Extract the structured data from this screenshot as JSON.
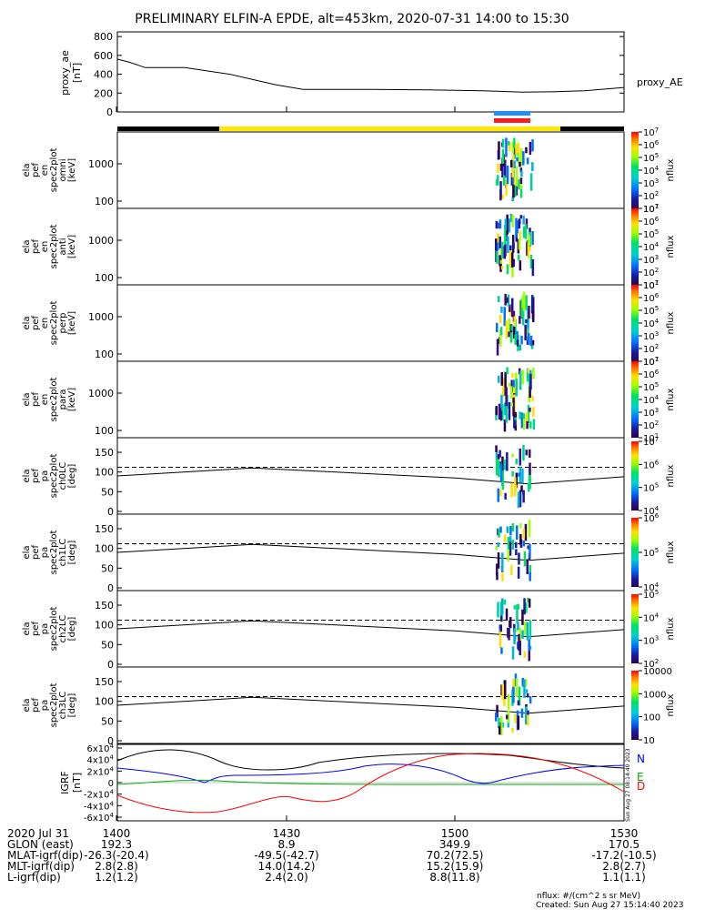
{
  "title": "PRELIMINARY ELFIN-A EPDE, alt=453km, 2020-07-31 14:00 to 15:30",
  "colors": {
    "blue_bar": "#1e90ff",
    "red_bar": "#ff1e1e",
    "yellow_bar": "#ffe600",
    "black_bar": "#000000",
    "grf_N": "#0000ff",
    "grf_E": "#00aa00",
    "grf_D": "#ff0000"
  },
  "ae_panel": {
    "ylabel_lines": [
      "proxy_ae",
      "[nT]"
    ],
    "yticks": [
      0,
      200,
      400,
      600,
      800
    ],
    "ylim": [
      0,
      850
    ],
    "legend": "proxy_AE",
    "series": {
      "t": [
        0,
        2,
        5,
        12,
        20,
        28,
        33,
        38,
        45,
        55,
        65,
        72,
        78,
        83,
        90
      ],
      "values": [
        560,
        530,
        470,
        470,
        400,
        290,
        240,
        240,
        240,
        235,
        225,
        210,
        215,
        225,
        260
      ]
    }
  },
  "spec_panels": [
    {
      "ylabel_lines": [
        "ela",
        "pef",
        "en",
        "spec2plot",
        "omni",
        "[keV]"
      ],
      "yticks": [
        "100",
        "1000"
      ],
      "cbar_label": "nflux",
      "cbar_ticks": [
        "10^1",
        "10^2",
        "10^3",
        "10^4",
        "10^5",
        "10^6",
        "10^7"
      ]
    },
    {
      "ylabel_lines": [
        "ela",
        "pef",
        "en",
        "spec2plot",
        "anti",
        "[keV]"
      ],
      "yticks": [
        "100",
        "1000"
      ],
      "cbar_label": "nflux",
      "cbar_ticks": [
        "10^1",
        "10^2",
        "10^3",
        "10^4",
        "10^5",
        "10^6",
        "10^7"
      ]
    },
    {
      "ylabel_lines": [
        "ela",
        "pef",
        "en",
        "spec2plot",
        "perp",
        "[keV]"
      ],
      "yticks": [
        "100",
        "1000"
      ],
      "cbar_label": "nflux",
      "cbar_ticks": [
        "10^1",
        "10^2",
        "10^3",
        "10^4",
        "10^5",
        "10^6",
        "10^7"
      ]
    },
    {
      "ylabel_lines": [
        "ela",
        "pef",
        "en",
        "spec2plot",
        "para",
        "[keV]"
      ],
      "yticks": [
        "100",
        "1000"
      ],
      "cbar_label": "nflux",
      "cbar_ticks": [
        "10^1",
        "10^2",
        "10^3",
        "10^4",
        "10^5",
        "10^6",
        "10^7"
      ]
    }
  ],
  "pa_panels": [
    {
      "ylabel_lines": [
        "ela",
        "pef",
        "pa",
        "spec2plot",
        "ch0LC",
        "[deg]"
      ],
      "yticks": [
        "0",
        "50",
        "100",
        "150"
      ],
      "cbar_label": "nflux",
      "cbar_ticks": [
        "10^4",
        "10^5",
        "10^6",
        "10^7"
      ]
    },
    {
      "ylabel_lines": [
        "ela",
        "pef",
        "pa",
        "spec2plot",
        "ch1LC",
        "[deg]"
      ],
      "yticks": [
        "0",
        "50",
        "100",
        "150"
      ],
      "cbar_label": "nflux",
      "cbar_ticks": [
        "10^4",
        "10^5",
        "10^6"
      ]
    },
    {
      "ylabel_lines": [
        "ela",
        "pef",
        "pa",
        "spec2plot",
        "ch2LC",
        "[deg]"
      ],
      "yticks": [
        "0",
        "50",
        "100",
        "150"
      ],
      "cbar_label": "nflux",
      "cbar_ticks": [
        "10^2",
        "10^3",
        "10^4",
        "10^5"
      ]
    },
    {
      "ylabel_lines": [
        "ela",
        "pef",
        "pa",
        "spec2plot",
        "ch3LC",
        "[deg]"
      ],
      "yticks": [
        "0",
        "50",
        "100",
        "150"
      ],
      "cbar_label": "nflux",
      "cbar_ticks": [
        "10",
        "100",
        "1000",
        "10000"
      ]
    }
  ],
  "grf_panel": {
    "ylabel_lines": [
      "IGRF",
      "[nT]"
    ],
    "yticks": [
      "-6x10^4",
      "-4x10^4",
      "-2x10^4",
      "0",
      "2x10^4",
      "4x10^4",
      "6x10^4"
    ],
    "legend": [
      "N",
      "E",
      "D"
    ],
    "side_note": "Sun Aug 27 08:14:40 2023"
  },
  "footer": {
    "rows": [
      {
        "label": "2020 Jul 31",
        "values": [
          "1400",
          "1430",
          "1500",
          "1530"
        ]
      },
      {
        "label": "GLON (east)",
        "values": [
          "192.3",
          "8.9",
          "349.9",
          "170.5"
        ]
      },
      {
        "label": "MLAT-igrf(dip)",
        "values": [
          "-26.3(-20.4)",
          "-49.5(-42.7)",
          "70.2(72.5)",
          "-17.2(-10.5)"
        ]
      },
      {
        "label": "MLT-igrf(dip)",
        "values": [
          "2.8(2.8)",
          "14.0(14.2)",
          "15.2(15.9)",
          "2.8(2.7)"
        ]
      },
      {
        "label": "L-igrf(dip)",
        "values": [
          "1.2(1.2)",
          "2.4(2.0)",
          "8.8(11.8)",
          "1.1(1.1)"
        ]
      }
    ],
    "unit_note": "nflux: #/(cm^2 s sr MeV)",
    "created": "Created: Sun Aug 27 15:14:40 2023"
  },
  "chart_data": {
    "type": "line",
    "title": "PRELIMINARY ELFIN-A EPDE, alt=453km, 2020-07-31 14:00 to 15:30",
    "x_range_minutes": [
      0,
      90
    ],
    "x_ticks": [
      "1400",
      "1430",
      "1500",
      "1530"
    ],
    "series": [
      {
        "name": "proxy_AE",
        "x": [
          0,
          2,
          5,
          12,
          20,
          28,
          33,
          38,
          45,
          55,
          65,
          72,
          78,
          83,
          90
        ],
        "y": [
          560,
          530,
          470,
          470,
          400,
          290,
          240,
          240,
          240,
          235,
          225,
          210,
          215,
          225,
          260
        ]
      }
    ],
    "science_zone_min": [
      70,
      74
    ],
    "grid": false
  }
}
